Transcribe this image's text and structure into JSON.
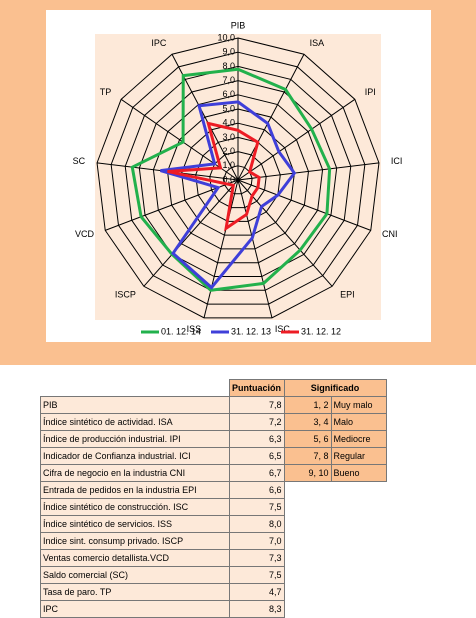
{
  "chart_data": {
    "type": "radar",
    "categories": [
      "PIB",
      "ISA",
      "IPI",
      "ICI",
      "CNI",
      "EPI",
      "ISC",
      "ISS",
      "ISCP",
      "VCD",
      "SC",
      "TP",
      "IPC"
    ],
    "ylim": [
      0,
      10
    ],
    "yticks": [
      {
        "value": 0,
        "label": "0,0"
      },
      {
        "value": 1,
        "label": "1,0"
      },
      {
        "value": 2,
        "label": "2,0"
      },
      {
        "value": 3,
        "label": "3,0"
      },
      {
        "value": 4,
        "label": "4,0"
      },
      {
        "value": 5,
        "label": "5,0"
      },
      {
        "value": 6,
        "label": "6,0"
      },
      {
        "value": 7,
        "label": "7,0"
      },
      {
        "value": 8,
        "label": "8,0"
      },
      {
        "value": 9,
        "label": "9,0"
      },
      {
        "value": 10,
        "label": "10,0"
      }
    ],
    "grid": true,
    "legend": "bottom",
    "series": [
      {
        "name": "01. 12. 14",
        "color": "#22b14c",
        "values": [
          7.8,
          7.2,
          6.3,
          6.5,
          6.7,
          6.6,
          7.5,
          8.0,
          7.0,
          7.3,
          7.5,
          4.7,
          8.3
        ]
      },
      {
        "name": "31. 12. 13",
        "color": "#3f3fd9",
        "values": [
          5.5,
          4.5,
          3.5,
          4.0,
          3.0,
          2.5,
          4.2,
          7.8,
          6.9,
          1.5,
          5.5,
          2.0,
          5.9
        ]
      },
      {
        "name": "31. 12. 12",
        "color": "#ed1c24",
        "values": [
          3.5,
          3.0,
          1.0,
          1.5,
          1.5,
          1.5,
          2.5,
          3.5,
          0.5,
          0.8,
          5.0,
          1.5,
          4.5
        ]
      }
    ]
  },
  "table": {
    "header": [
      "Puntuación",
      "Significado"
    ],
    "rows": [
      [
        "PIB",
        "7,8"
      ],
      [
        "Índice sintético de actividad. ISA",
        "7,2"
      ],
      [
        "Índice de producción industrial. IPI",
        "6,3"
      ],
      [
        "Indicador de Confianza industrial. ICI",
        "6,5"
      ],
      [
        "Cifra de negocio en la industria CNI",
        "6,7"
      ],
      [
        "Entrada de pedidos en la industria EPI",
        "6,6"
      ],
      [
        "Índice sintético de construcción. ISC",
        "7,5"
      ],
      [
        "Índice sintético de servicios. ISS",
        "8,0"
      ],
      [
        "Indice sint. consump privado. ISCP",
        "7,0"
      ],
      [
        "Ventas comercio detallista.VCD",
        "7,3"
      ],
      [
        "Saldo comercial (SC)",
        "7,5"
      ],
      [
        "Tasa de paro. TP",
        "4,7"
      ],
      [
        "IPC",
        "8,3"
      ]
    ],
    "legend": [
      [
        "1, 2",
        "Muy malo"
      ],
      [
        "3, 4",
        "Malo"
      ],
      [
        "5, 6",
        "Mediocre"
      ],
      [
        "7, 8",
        "Regular"
      ],
      [
        "9, 10",
        "Bueno"
      ]
    ]
  }
}
